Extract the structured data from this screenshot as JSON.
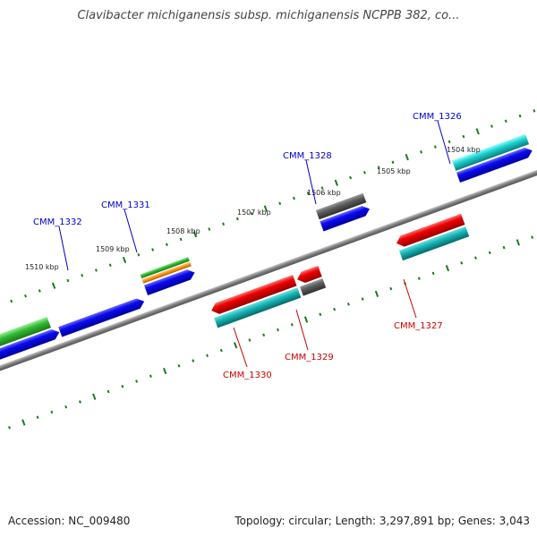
{
  "title": "Clavibacter michiganensis subsp. michiganensis NCPPB 382, co...",
  "footer": {
    "accession": "Accession: NC_009480",
    "summary": "Topology: circular; Length: 3,297,891 bp; Genes: 3,043"
  },
  "colors": {
    "backbone": "#8a8a8a",
    "tick": "#1c7a1c",
    "forward_label": "#0000cc",
    "reverse_label": "#cc0000"
  },
  "ticks": [
    "1510 kbp",
    "1509 kbp",
    "1508 kbp",
    "1507 kbp",
    "1506 kbp",
    "1505 kbp",
    "1504 kbp"
  ],
  "genes_forward": [
    {
      "label": "CMM_1332",
      "color": "blue"
    },
    {
      "label": "CMM_1331",
      "color": "blue"
    },
    {
      "label": "CMM_1328",
      "color": "blue"
    },
    {
      "label": "CMM_1326",
      "color": "blue"
    }
  ],
  "genes_reverse": [
    {
      "label": "CMM_1330",
      "color": "red"
    },
    {
      "label": "CMM_1329",
      "color": "red"
    },
    {
      "label": "CMM_1327",
      "color": "red"
    }
  ]
}
